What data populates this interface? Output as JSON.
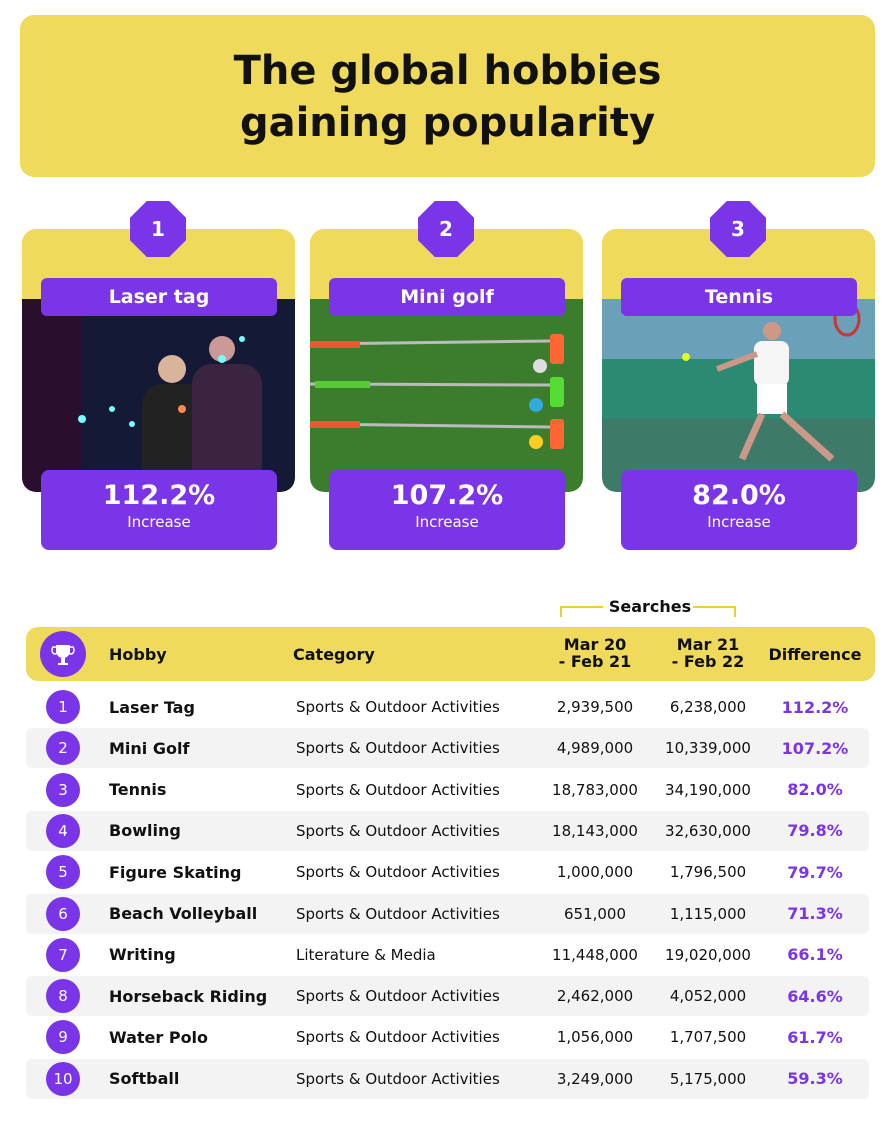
{
  "header": {
    "title_lines": [
      "The global hobbies",
      "gaining popularity"
    ]
  },
  "cards": [
    {
      "rank": "1",
      "name": "Laser tag",
      "value": "112.2%",
      "label": "Increase"
    },
    {
      "rank": "2",
      "name": "Mini golf",
      "value": "107.2%",
      "label": "Increase"
    },
    {
      "rank": "3",
      "name": "Tennis",
      "value": "82.0%",
      "label": "Increase"
    }
  ],
  "table": {
    "group_label": "Searches",
    "columns": {
      "hobby": "Hobby",
      "category": "Category",
      "period1": [
        "Mar 20",
        "- Feb 21"
      ],
      "period2": [
        "Mar 21",
        "- Feb 22"
      ],
      "difference": "Difference"
    },
    "rows": [
      [
        "1",
        "Laser Tag",
        "Sports & Outdoor Activities",
        "2,939,500",
        "6,238,000",
        "112.2%"
      ],
      [
        "2",
        "Mini Golf",
        "Sports & Outdoor Activities",
        "4,989,000",
        "10,339,000",
        "107.2%"
      ],
      [
        "3",
        "Tennis",
        "Sports & Outdoor Activities",
        "18,783,000",
        "34,190,000",
        "82.0%"
      ],
      [
        "4",
        "Bowling",
        "Sports & Outdoor Activities",
        "18,143,000",
        "32,630,000",
        "79.8%"
      ],
      [
        "5",
        "Figure Skating",
        "Sports & Outdoor Activities",
        "1,000,000",
        "1,796,500",
        "79.7%"
      ],
      [
        "6",
        "Beach Volleyball",
        "Sports & Outdoor Activities",
        "651,000",
        "1,115,000",
        "71.3%"
      ],
      [
        "7",
        "Writing",
        "Literature & Media",
        "11,448,000",
        "19,020,000",
        "66.1%"
      ],
      [
        "8",
        "Horseback Riding",
        "Sports & Outdoor Activities",
        "2,462,000",
        "4,052,000",
        "64.6%"
      ],
      [
        "9",
        "Water Polo",
        "Sports & Outdoor Activities",
        "1,056,000",
        "1,707,500",
        "61.7%"
      ],
      [
        "10",
        "Softball",
        "Sports & Outdoor Activities",
        "3,249,000",
        "5,175,000",
        "59.3%"
      ]
    ]
  }
}
